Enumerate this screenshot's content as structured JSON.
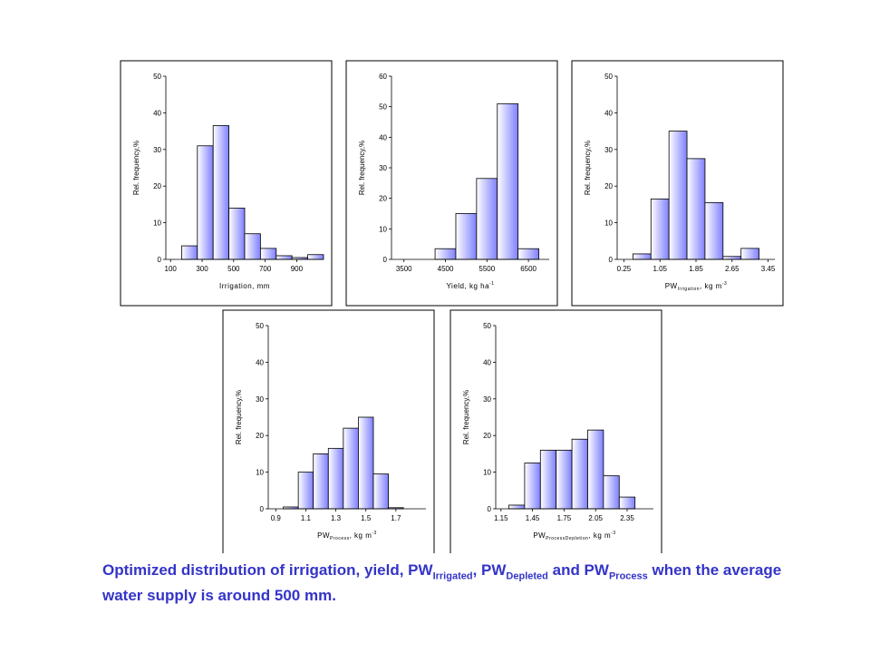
{
  "chart_data": [
    {
      "type": "histogram",
      "ylabel": "Rel. frequency,%",
      "xlabel": [
        {
          "text": "Irrigation, mm"
        }
      ],
      "bins": [
        170,
        270,
        370,
        470,
        570,
        670,
        770,
        870,
        970,
        1070
      ],
      "values": [
        3.7,
        31,
        36.5,
        14,
        7,
        3,
        1,
        0.5,
        1.3
      ],
      "xlim": [
        70,
        1070
      ],
      "xticks": [
        100,
        300,
        500,
        700,
        900
      ],
      "ylim": [
        0,
        50
      ],
      "yticks": [
        0,
        10,
        20,
        30,
        40,
        50
      ],
      "color": "#7f7fff"
    },
    {
      "type": "histogram",
      "ylabel": "Rel. frequency,%",
      "xlabel": [
        {
          "text": "Yield, kg ha"
        },
        {
          "sup": "-1"
        }
      ],
      "bins": [
        4250,
        4750,
        5250,
        5750,
        6250,
        6750
      ],
      "values": [
        3.5,
        15,
        26.5,
        51,
        3.5
      ],
      "xlim": [
        3200,
        7000
      ],
      "xticks": [
        3500,
        4500,
        5500,
        6500
      ],
      "ylim": [
        0,
        60
      ],
      "yticks": [
        0,
        10,
        20,
        30,
        40,
        50,
        60
      ],
      "color": "#7f7fff"
    },
    {
      "type": "histogram",
      "ylabel": "Rel. frequency,%",
      "xlabel": [
        {
          "text": "PW"
        },
        {
          "sub": "Irrigation"
        },
        {
          "text": ", kg m"
        },
        {
          "sup": "-3"
        }
      ],
      "bins": [
        0.45,
        0.85,
        1.25,
        1.65,
        2.05,
        2.45,
        2.85,
        3.25
      ],
      "values": [
        1.5,
        16.5,
        35,
        27.5,
        15.5,
        0.8,
        3
      ],
      "xlim": [
        0.1,
        3.6
      ],
      "xticks": [
        0.25,
        1.05,
        1.85,
        2.65,
        3.45
      ],
      "ylim": [
        0,
        50
      ],
      "yticks": [
        0,
        10,
        20,
        30,
        40,
        50
      ],
      "color": "#7f7fff"
    },
    {
      "type": "histogram",
      "ylabel": "Rel. frequency,%",
      "xlabel": [
        {
          "text": "PW"
        },
        {
          "sub": "Process"
        },
        {
          "text": ", kg m"
        },
        {
          "sup": "-3"
        }
      ],
      "bins": [
        0.95,
        1.05,
        1.15,
        1.25,
        1.35,
        1.45,
        1.55,
        1.65,
        1.75
      ],
      "values": [
        0.5,
        10,
        15,
        16.5,
        22,
        25,
        9.5,
        0.3
      ],
      "xlim": [
        0.85,
        1.9
      ],
      "xticks": [
        0.9,
        1.1,
        1.3,
        1.5,
        1.7
      ],
      "ylim": [
        0,
        50
      ],
      "yticks": [
        0,
        10,
        20,
        30,
        40,
        50
      ],
      "color": "#7f7fff"
    },
    {
      "type": "histogram",
      "ylabel": "Rel. frequency,%",
      "xlabel": [
        {
          "text": "PW"
        },
        {
          "sub": "ProcessDepletion"
        },
        {
          "text": ", kg m"
        },
        {
          "sup": "-3"
        }
      ],
      "bins": [
        1.225,
        1.375,
        1.525,
        1.675,
        1.825,
        1.975,
        2.125,
        2.275,
        2.425
      ],
      "values": [
        1,
        12.5,
        16,
        16,
        19,
        21.5,
        9,
        3.2
      ],
      "xlim": [
        1.1,
        2.6
      ],
      "xticks": [
        1.15,
        1.45,
        1.75,
        2.05,
        2.35
      ],
      "ylim": [
        0,
        50
      ],
      "yticks": [
        0,
        10,
        20,
        30,
        40,
        50
      ],
      "color": "#7f7fff"
    }
  ],
  "caption": [
    "Optimized distribution of irrigation, yield, PW",
    "Irrigated",
    ", PW",
    "Depleted",
    " and PW",
    "Process",
    " when the average water supply is around 500 mm."
  ]
}
